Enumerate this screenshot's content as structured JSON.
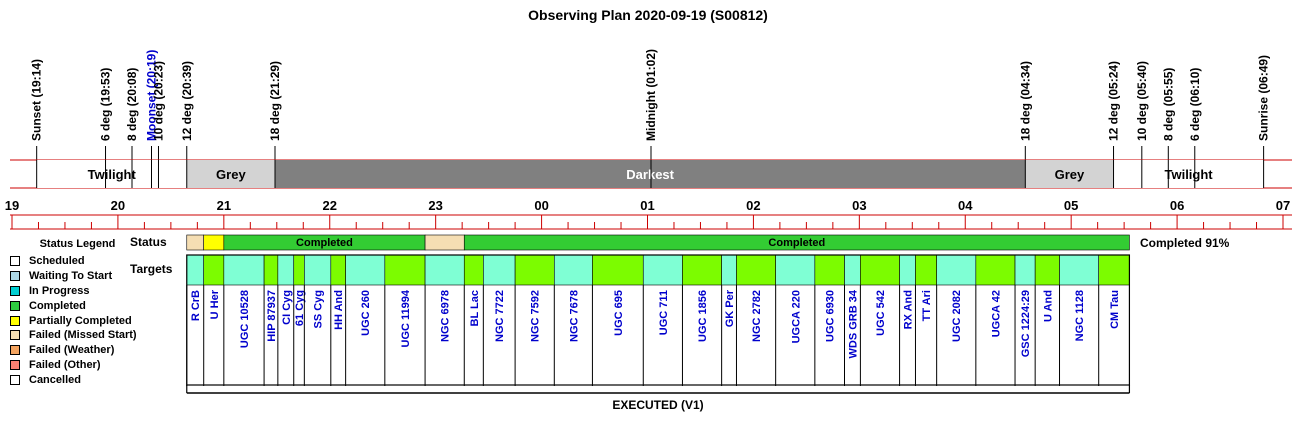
{
  "chart_data": {
    "type": "gantt",
    "title": "Observing Plan 2020-09-19 (S00812)",
    "footer": "EXECUTED (V1)",
    "axis": {
      "tick_labels": [
        "19",
        "20",
        "21",
        "22",
        "23",
        "00",
        "01",
        "02",
        "03",
        "04",
        "05",
        "06",
        "07"
      ],
      "start_hour": 19,
      "end_hour": 31
    },
    "events": [
      {
        "label": "Sunset (19:14)",
        "time": 19.233,
        "color": "#000000"
      },
      {
        "label": "6 deg (19:53)",
        "time": 19.883,
        "color": "#000000"
      },
      {
        "label": "8 deg (20:08)",
        "time": 20.133,
        "color": "#000000"
      },
      {
        "label": "Moonset (20:19)",
        "time": 20.317,
        "color": "#0000cc"
      },
      {
        "label": "10 deg (20:23)",
        "time": 20.383,
        "color": "#000000"
      },
      {
        "label": "12 deg (20:39)",
        "time": 20.65,
        "color": "#000000"
      },
      {
        "label": "18 deg (21:29)",
        "time": 21.483,
        "color": "#000000"
      },
      {
        "label": "Midnight (01:02)",
        "time": 25.033,
        "color": "#000000"
      },
      {
        "label": "18 deg (04:34)",
        "time": 28.567,
        "color": "#000000"
      },
      {
        "label": "12 deg (05:24)",
        "time": 29.4,
        "color": "#000000"
      },
      {
        "label": "10 deg (05:40)",
        "time": 29.667,
        "color": "#000000"
      },
      {
        "label": "8 deg (05:55)",
        "time": 29.917,
        "color": "#000000"
      },
      {
        "label": "6 deg (06:10)",
        "time": 30.167,
        "color": "#000000"
      },
      {
        "label": "Sunrise (06:49)",
        "time": 30.817,
        "color": "#000000"
      }
    ],
    "sky_bands": [
      {
        "label": "Twilight",
        "start": 19.233,
        "end": 20.65,
        "color": "#ffffff",
        "text_color": "#000000"
      },
      {
        "label": "Grey",
        "start": 20.65,
        "end": 21.483,
        "color": "#d3d3d3",
        "text_color": "#000000"
      },
      {
        "label": "Darkest",
        "start": 21.483,
        "end": 28.567,
        "color": "#808080",
        "text_color": "#ffffff"
      },
      {
        "label": "Grey",
        "start": 28.567,
        "end": 29.4,
        "color": "#d3d3d3",
        "text_color": "#000000"
      },
      {
        "label": "Twilight",
        "start": 29.4,
        "end": 30.817,
        "color": "#ffffff",
        "text_color": "#000000"
      }
    ],
    "status_row_label": "Status",
    "targets_row_label": "Targets",
    "status_summary": "Completed 91%",
    "status_segments": [
      {
        "start": 20.65,
        "end": 20.81,
        "status": "Failed (Missed Start)",
        "label": ""
      },
      {
        "start": 20.81,
        "end": 21.0,
        "status": "Partially Completed",
        "label": ""
      },
      {
        "start": 21.0,
        "end": 22.9,
        "status": "Completed",
        "label": "Completed"
      },
      {
        "start": 22.9,
        "end": 23.27,
        "status": "Failed (Missed Start)",
        "label": ""
      },
      {
        "start": 23.27,
        "end": 29.55,
        "status": "Completed",
        "label": "Completed"
      }
    ],
    "targets": [
      {
        "name": "R CrB",
        "start": 20.65,
        "end": 20.81,
        "color": "#7fffd4"
      },
      {
        "name": "U Her",
        "start": 20.81,
        "end": 21.0,
        "color": "#7cfc00"
      },
      {
        "name": "UGC 10528",
        "start": 21.0,
        "end": 21.38,
        "color": "#7fffd4"
      },
      {
        "name": "HIP 87937",
        "start": 21.38,
        "end": 21.51,
        "color": "#7cfc00"
      },
      {
        "name": "CI Cyg",
        "start": 21.51,
        "end": 21.66,
        "color": "#7fffd4"
      },
      {
        "name": "61 Cyg",
        "start": 21.66,
        "end": 21.76,
        "color": "#7cfc00"
      },
      {
        "name": "SS Cyg",
        "start": 21.76,
        "end": 22.01,
        "color": "#7fffd4"
      },
      {
        "name": "HH And",
        "start": 22.01,
        "end": 22.15,
        "color": "#7cfc00"
      },
      {
        "name": "UGC 260",
        "start": 22.15,
        "end": 22.52,
        "color": "#7fffd4"
      },
      {
        "name": "UGC 11994",
        "start": 22.52,
        "end": 22.9,
        "color": "#7cfc00"
      },
      {
        "name": "NGC 6978",
        "start": 22.9,
        "end": 23.27,
        "color": "#7fffd4"
      },
      {
        "name": "BL Lac",
        "start": 23.27,
        "end": 23.45,
        "color": "#7cfc00"
      },
      {
        "name": "NGC 7722",
        "start": 23.45,
        "end": 23.75,
        "color": "#7fffd4"
      },
      {
        "name": "NGC 7592",
        "start": 23.75,
        "end": 24.12,
        "color": "#7cfc00"
      },
      {
        "name": "NGC 7678",
        "start": 24.12,
        "end": 24.48,
        "color": "#7fffd4"
      },
      {
        "name": "UGC 695",
        "start": 24.48,
        "end": 24.96,
        "color": "#7cfc00"
      },
      {
        "name": "UGC 711",
        "start": 24.96,
        "end": 25.33,
        "color": "#7fffd4"
      },
      {
        "name": "UGC 1856",
        "start": 25.33,
        "end": 25.7,
        "color": "#7cfc00"
      },
      {
        "name": "GK Per",
        "start": 25.7,
        "end": 25.84,
        "color": "#7fffd4"
      },
      {
        "name": "NGC 2782",
        "start": 25.84,
        "end": 26.21,
        "color": "#7cfc00"
      },
      {
        "name": "UGCA 220",
        "start": 26.21,
        "end": 26.58,
        "color": "#7fffd4"
      },
      {
        "name": "UGC 6930",
        "start": 26.58,
        "end": 26.86,
        "color": "#7cfc00"
      },
      {
        "name": "WDS GRB 34",
        "start": 26.86,
        "end": 27.01,
        "color": "#7fffd4"
      },
      {
        "name": "UGC 542",
        "start": 27.01,
        "end": 27.38,
        "color": "#7cfc00"
      },
      {
        "name": "RX And",
        "start": 27.38,
        "end": 27.53,
        "color": "#7fffd4"
      },
      {
        "name": "TT Ari",
        "start": 27.53,
        "end": 27.73,
        "color": "#7cfc00"
      },
      {
        "name": "UGC 2082",
        "start": 27.73,
        "end": 28.1,
        "color": "#7fffd4"
      },
      {
        "name": "UGCA 42",
        "start": 28.1,
        "end": 28.47,
        "color": "#7cfc00"
      },
      {
        "name": "GSC 1224:29",
        "start": 28.47,
        "end": 28.66,
        "color": "#7fffd4"
      },
      {
        "name": "U And",
        "start": 28.66,
        "end": 28.89,
        "color": "#7cfc00"
      },
      {
        "name": "NGC 1128",
        "start": 28.89,
        "end": 29.26,
        "color": "#7fffd4"
      },
      {
        "name": "CM Tau",
        "start": 29.26,
        "end": 29.55,
        "color": "#7cfc00"
      }
    ]
  },
  "legend": {
    "title": "Status Legend",
    "items": [
      {
        "label": "Scheduled",
        "color": "#ffffff"
      },
      {
        "label": "Waiting To Start",
        "color": "#add8e6"
      },
      {
        "label": "In Progress",
        "color": "#00ced1"
      },
      {
        "label": "Completed",
        "color": "#2ecc40"
      },
      {
        "label": "Partially Completed",
        "color": "#ffff00"
      },
      {
        "label": "Failed (Missed Start)",
        "color": "#f5deb3"
      },
      {
        "label": "Failed (Weather)",
        "color": "#f4a460"
      },
      {
        "label": "Failed (Other)",
        "color": "#fa8072"
      },
      {
        "label": "Cancelled",
        "color": "#ffffff"
      }
    ]
  },
  "colors": {
    "status_completed": "#33cc33",
    "status_partial": "#ffff00",
    "status_missed": "#f5deb3",
    "target_name": "#0000cc",
    "axis_red": "#cc0000"
  }
}
